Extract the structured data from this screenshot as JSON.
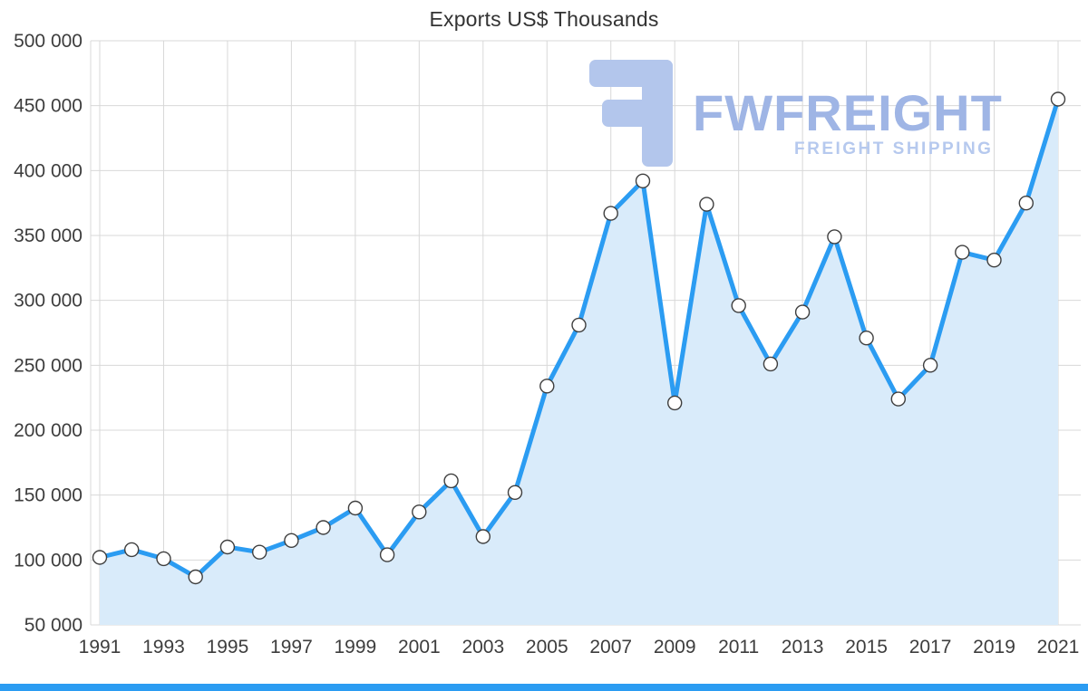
{
  "page": {
    "title": "Exports US$ Thousands"
  },
  "watermark": {
    "brand": "FWFREIGHT",
    "tagline": "FREIGHT SHIPPING",
    "color_logo": "#b3c6ec",
    "color_text": "#9fb5e5",
    "color_tagline": "#b6c9ee"
  },
  "colors": {
    "line": "#2b9cf2",
    "area": "#d9ebfa",
    "marker_fill": "#ffffff",
    "marker_stroke": "#3f3f3f",
    "grid": "#d8d8d8",
    "axis_text": "#3d3d3d",
    "footer_bar": "#2b9cf2",
    "background": "#ffffff"
  },
  "chart_data": {
    "type": "line",
    "title": "Exports US$ Thousands",
    "x": [
      1991,
      1992,
      1993,
      1994,
      1995,
      1996,
      1997,
      1998,
      1999,
      2000,
      2001,
      2002,
      2003,
      2004,
      2005,
      2006,
      2007,
      2008,
      2009,
      2010,
      2011,
      2012,
      2013,
      2014,
      2015,
      2016,
      2017,
      2018,
      2019,
      2020,
      2021
    ],
    "values": [
      102000,
      108000,
      101000,
      87000,
      110000,
      106000,
      115000,
      125000,
      140000,
      104000,
      137000,
      161000,
      118000,
      152000,
      234000,
      281000,
      367000,
      392000,
      221000,
      374000,
      296000,
      251000,
      291000,
      349000,
      271000,
      224000,
      250000,
      337000,
      331000,
      375000,
      455000
    ],
    "ylim": [
      50000,
      500000
    ],
    "y_ticks": [
      50000,
      100000,
      150000,
      200000,
      250000,
      300000,
      350000,
      400000,
      450000,
      500000
    ],
    "y_tick_labels": [
      "50 000",
      "100 000",
      "150 000",
      "200 000",
      "250 000",
      "300 000",
      "350 000",
      "400 000",
      "450 000",
      "500 000"
    ],
    "x_ticks": [
      1991,
      1993,
      1995,
      1997,
      1999,
      2001,
      2003,
      2005,
      2007,
      2009,
      2011,
      2013,
      2015,
      2017,
      2019,
      2021
    ],
    "x_tick_labels": [
      "1991",
      "1993",
      "1995",
      "1997",
      "1999",
      "2001",
      "2003",
      "2005",
      "2007",
      "2009",
      "2011",
      "2013",
      "2015",
      "2017",
      "2019",
      "2021"
    ],
    "grid": true,
    "area_fill": true,
    "legend": "none",
    "xlabel": "",
    "ylabel": ""
  }
}
